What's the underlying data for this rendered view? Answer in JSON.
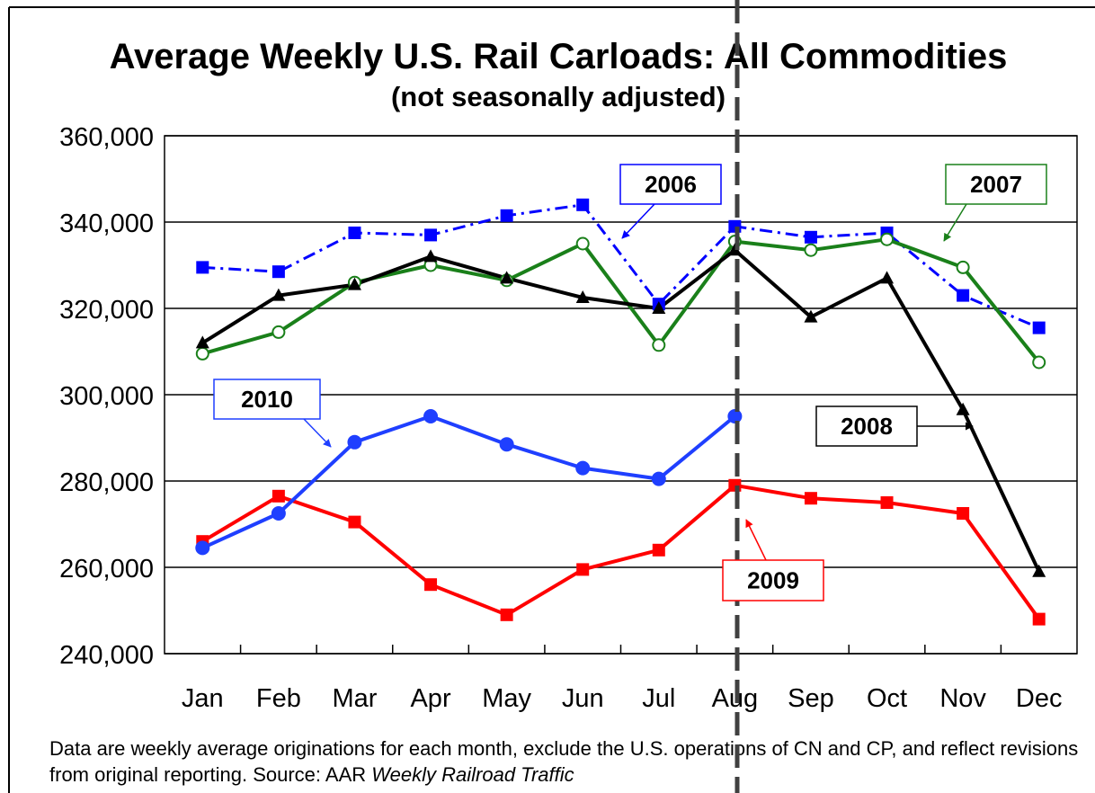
{
  "chart_data": {
    "type": "line",
    "title": "Average Weekly U.S. Rail Carloads: All Commodities",
    "subtitle": "(not seasonally adjusted)",
    "footnote": "Data are weekly average originations for each month, exclude the U.S. operations of CN and CP, and reflect revisions from original reporting.  Source: AAR",
    "footnote_source": "Weekly Railroad Traffic",
    "categories": [
      "Jan",
      "Feb",
      "Mar",
      "Apr",
      "May",
      "Jun",
      "Jul",
      "Aug",
      "Sep",
      "Oct",
      "Nov",
      "Dec"
    ],
    "ylim": [
      240000,
      360000
    ],
    "yticks": [
      {
        "value": 240000,
        "label": "240,000"
      },
      {
        "value": 260000,
        "label": "260,000"
      },
      {
        "value": 280000,
        "label": "280,000"
      },
      {
        "value": 300000,
        "label": "300,000"
      },
      {
        "value": 320000,
        "label": "320,000"
      },
      {
        "value": 340000,
        "label": "340,000"
      },
      {
        "value": 360000,
        "label": "360,000"
      }
    ],
    "grid": true,
    "series": [
      {
        "name": "2006",
        "color": "#0000ff",
        "marker": "square",
        "line_style": "dashdot",
        "values": [
          329500,
          328500,
          337500,
          337000,
          341500,
          344000,
          321000,
          339000,
          336500,
          337500,
          323000,
          315500
        ]
      },
      {
        "name": "2007",
        "color": "#1a801a",
        "marker": "open-circle",
        "line_style": "solid",
        "values": [
          309500,
          314500,
          326000,
          330000,
          326500,
          335000,
          311500,
          335500,
          333500,
          336000,
          329500,
          307500
        ]
      },
      {
        "name": "2008",
        "color": "#000000",
        "marker": "triangle",
        "line_style": "solid",
        "values": [
          312000,
          323000,
          325500,
          332000,
          327000,
          322500,
          320000,
          333500,
          318000,
          327000,
          296500,
          259000
        ]
      },
      {
        "name": "2009",
        "color": "#ff0000",
        "marker": "square",
        "line_style": "solid",
        "values": [
          266000,
          276500,
          270500,
          256000,
          249000,
          259500,
          264000,
          279000,
          276000,
          275000,
          272500,
          248000
        ]
      },
      {
        "name": "2010",
        "color": "#1f3fff",
        "marker": "circle",
        "line_style": "solid",
        "values": [
          264500,
          272500,
          289000,
          295000,
          288500,
          283000,
          280500,
          295000,
          null,
          null,
          null,
          null
        ]
      }
    ]
  }
}
